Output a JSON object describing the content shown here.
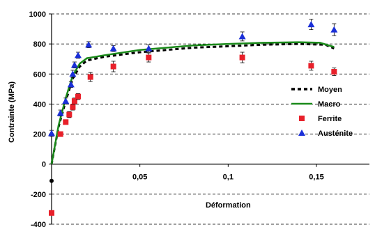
{
  "chart_data": {
    "type": "scatter",
    "xlabel": "Déformation",
    "ylabel": "Contrainte (MPa)",
    "xlim": [
      0,
      0.18
    ],
    "ylim": [
      -400,
      1000
    ],
    "grid": true,
    "legend_position": "right",
    "x_ticks": [
      {
        "value": 0.05,
        "label": "0,05"
      },
      {
        "value": 0.1,
        "label": "0,1"
      },
      {
        "value": 0.15,
        "label": "0,15"
      }
    ],
    "y_ticks": [
      {
        "value": -400,
        "label": "-400"
      },
      {
        "value": -200,
        "label": "-200"
      },
      {
        "value": 0,
        "label": "0"
      },
      {
        "value": 200,
        "label": "200"
      },
      {
        "value": 400,
        "label": "400"
      },
      {
        "value": 600,
        "label": "600"
      },
      {
        "value": 800,
        "label": "800"
      },
      {
        "value": 1000,
        "label": "1000"
      }
    ],
    "series": [
      {
        "name": "Moyen",
        "kind": "line",
        "style": "dashed",
        "color": "#000000",
        "x": [
          0,
          0.004,
          0.008,
          0.012,
          0.016,
          0.02,
          0.03,
          0.05,
          0.08,
          0.1,
          0.12,
          0.14,
          0.155,
          0.16
        ],
        "y": [
          0,
          250,
          420,
          570,
          650,
          690,
          715,
          745,
          775,
          785,
          795,
          800,
          795,
          770
        ]
      },
      {
        "name": "Macro",
        "kind": "line",
        "style": "solid",
        "color": "#1a8a1a",
        "x": [
          0,
          0.004,
          0.008,
          0.012,
          0.016,
          0.02,
          0.03,
          0.05,
          0.08,
          0.1,
          0.12,
          0.14,
          0.152,
          0.16
        ],
        "y": [
          0,
          260,
          440,
          590,
          670,
          705,
          725,
          760,
          790,
          800,
          808,
          812,
          808,
          780
        ]
      },
      {
        "name": "Ferrite",
        "kind": "points",
        "marker": "square",
        "color": "#e8202a",
        "x": [
          0,
          0.005,
          0.008,
          0.01,
          0.012,
          0.013,
          0.015,
          0.022,
          0.035,
          0.055,
          0.108,
          0.147,
          0.16
        ],
        "y": [
          -325,
          200,
          280,
          330,
          380,
          420,
          450,
          580,
          650,
          710,
          710,
          655,
          615
        ],
        "error": [
          0,
          15,
          15,
          20,
          20,
          20,
          20,
          30,
          35,
          30,
          35,
          30,
          25
        ]
      },
      {
        "name": "Austénite",
        "kind": "points",
        "marker": "triangle",
        "color": "#1a2fd8",
        "x": [
          0,
          0.005,
          0.008,
          0.011,
          0.012,
          0.013,
          0.015,
          0.021,
          0.035,
          0.055,
          0.108,
          0.147,
          0.16
        ],
        "y": [
          205,
          340,
          420,
          530,
          600,
          660,
          725,
          795,
          770,
          770,
          850,
          930,
          895
        ],
        "error": [
          20,
          20,
          20,
          20,
          25,
          20,
          20,
          20,
          20,
          25,
          30,
          35,
          40
        ]
      }
    ]
  }
}
